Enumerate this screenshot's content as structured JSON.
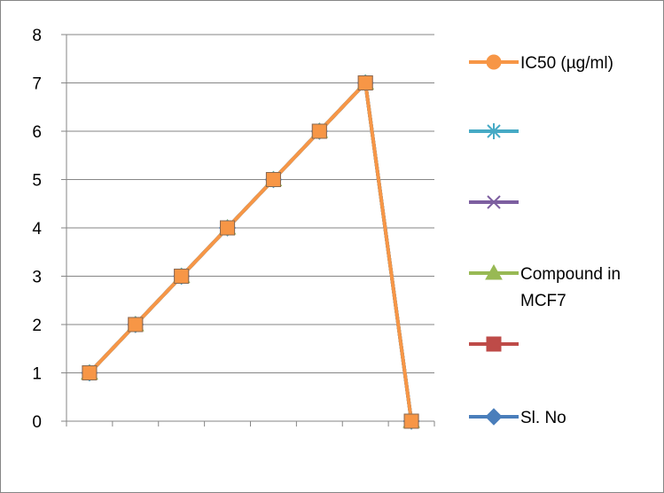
{
  "chart_data": {
    "type": "line",
    "x": [
      1,
      2,
      3,
      4,
      5,
      6,
      7,
      8
    ],
    "ylim": [
      0,
      8
    ],
    "yticks": [
      "0",
      "1",
      "2",
      "3",
      "4",
      "5",
      "6",
      "7",
      "8"
    ],
    "grid": true,
    "legend_placement": "right",
    "series": [
      {
        "name": "Sl. No",
        "values": [
          1,
          2,
          3,
          4,
          5,
          6,
          7,
          0
        ],
        "color": "#4a7ebb",
        "marker": "diamond"
      },
      {
        "name": "",
        "values": [
          1,
          2,
          3,
          4,
          5,
          6,
          7,
          0
        ],
        "color": "#be4b48",
        "marker": "square"
      },
      {
        "name": "Compound in MCF7",
        "values": [
          1,
          2,
          3,
          4,
          5,
          6,
          7,
          0
        ],
        "color": "#98b954",
        "marker": "triangle"
      },
      {
        "name": "",
        "values": [
          1,
          2,
          3,
          4,
          5,
          6,
          7,
          0
        ],
        "color": "#7d5fa0",
        "marker": "x"
      },
      {
        "name": "",
        "values": [
          1,
          2,
          3,
          4,
          5,
          6,
          7,
          0
        ],
        "color": "#46aac5",
        "marker": "star"
      },
      {
        "name": "IC50 (µg/ml)",
        "values": [
          1,
          2,
          3,
          4,
          5,
          6,
          7,
          0
        ],
        "color": "#f79646",
        "marker": "circle"
      }
    ],
    "legend": [
      {
        "lines": [
          "IC50 (µg/ml)"
        ],
        "series": 5
      },
      {
        "lines": [
          ""
        ],
        "series": 4
      },
      {
        "lines": [
          ""
        ],
        "series": 3
      },
      {
        "lines": [
          "Compound in",
          "MCF7"
        ],
        "series": 2
      },
      {
        "lines": [
          ""
        ],
        "series": 1
      },
      {
        "lines": [
          "Sl. No"
        ],
        "series": 0
      }
    ]
  }
}
